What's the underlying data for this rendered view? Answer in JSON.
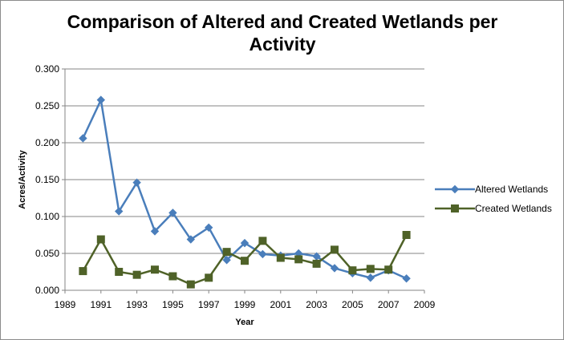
{
  "chart_data": {
    "type": "line",
    "title_lines": [
      "Comparison of Altered and Created Wetlands per",
      "Activity"
    ],
    "xlabel": "Year",
    "ylabel": "Acres/Activity",
    "xlim": [
      1989,
      2009
    ],
    "ylim": [
      0,
      0.3
    ],
    "x_ticks": [
      1989,
      1991,
      1993,
      1995,
      1997,
      1999,
      2001,
      2003,
      2005,
      2007,
      2009
    ],
    "y_ticks": [
      0,
      0.05,
      0.1,
      0.15,
      0.2,
      0.25,
      0.3
    ],
    "y_tick_labels": [
      "0.000",
      "0.050",
      "0.100",
      "0.150",
      "0.200",
      "0.250",
      "0.300"
    ],
    "grid": "horizontal",
    "legend_position": "right",
    "series": [
      {
        "name": "Altered Wetlands",
        "color": "#4a7ebb",
        "marker": "diamond",
        "x": [
          1990,
          1991,
          1992,
          1993,
          1994,
          1995,
          1996,
          1997,
          1998,
          1999,
          2000,
          2001,
          2002,
          2003,
          2004,
          2005,
          2006,
          2007,
          2008
        ],
        "values": [
          0.206,
          0.258,
          0.107,
          0.146,
          0.08,
          0.105,
          0.069,
          0.085,
          0.041,
          0.064,
          0.049,
          0.047,
          0.05,
          0.046,
          0.03,
          0.023,
          0.017,
          0.027,
          0.016
        ]
      },
      {
        "name": "Created Wetlands",
        "color": "#4f6228",
        "marker": "square",
        "x": [
          1990,
          1991,
          1992,
          1993,
          1994,
          1995,
          1996,
          1997,
          1998,
          1999,
          2000,
          2001,
          2002,
          2003,
          2004,
          2005,
          2006,
          2007,
          2008
        ],
        "values": [
          0.026,
          0.069,
          0.025,
          0.021,
          0.028,
          0.019,
          0.008,
          0.017,
          0.052,
          0.04,
          0.067,
          0.044,
          0.042,
          0.036,
          0.055,
          0.027,
          0.029,
          0.028,
          0.075
        ]
      }
    ]
  }
}
